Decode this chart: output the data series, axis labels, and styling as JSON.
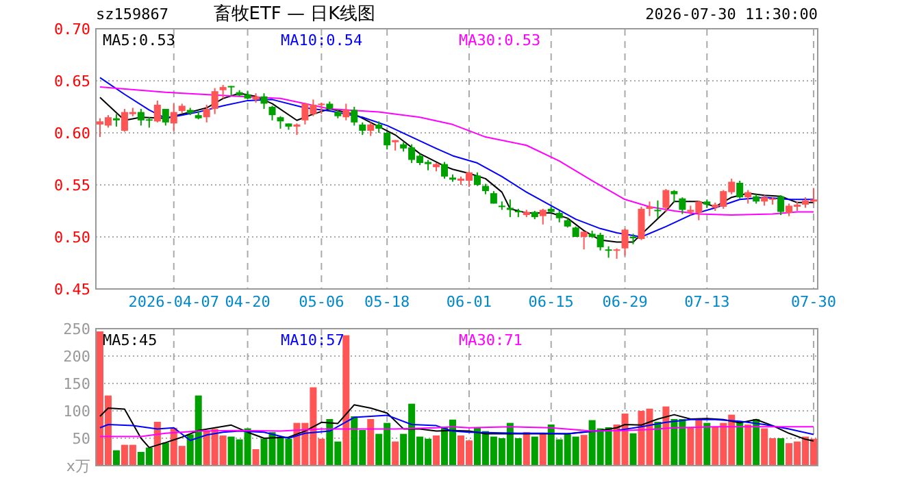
{
  "chart_data": [
    {
      "type": "candlestick",
      "title": "畜牧ETF — 日K线图",
      "annotations": [
        "sz159867",
        "2026-07-30 11:30:00"
      ],
      "categories": [
        null,
        null,
        null,
        null,
        null,
        null,
        null,
        null,
        null,
        "2026-04-07",
        null,
        null,
        null,
        null,
        null,
        null,
        null,
        null,
        "04-20",
        null,
        null,
        null,
        null,
        null,
        null,
        null,
        null,
        "05-06",
        null,
        null,
        null,
        null,
        null,
        null,
        null,
        "05-18",
        null,
        null,
        null,
        null,
        null,
        null,
        null,
        null,
        null,
        "06-01",
        null,
        null,
        null,
        null,
        null,
        null,
        null,
        null,
        null,
        "06-15",
        null,
        null,
        null,
        null,
        null,
        null,
        null,
        null,
        "06-29",
        null,
        null,
        null,
        null,
        null,
        null,
        null,
        null,
        null,
        "07-13",
        null,
        null,
        null,
        null,
        null,
        null,
        null,
        null,
        null,
        null,
        null,
        null,
        "07-30"
      ],
      "ohlc": [
        [
          0.608,
          0.614,
          0.596,
          0.611
        ],
        [
          0.607,
          0.617,
          0.605,
          0.615
        ],
        [
          0.614,
          0.618,
          0.606,
          0.612
        ],
        [
          0.602,
          0.623,
          0.601,
          0.62
        ],
        [
          0.618,
          0.624,
          0.616,
          0.62
        ],
        [
          0.62,
          0.623,
          0.607,
          0.612
        ],
        [
          0.613,
          0.615,
          0.605,
          0.612
        ],
        [
          0.611,
          0.631,
          0.61,
          0.627
        ],
        [
          0.623,
          0.623,
          0.607,
          0.61
        ],
        [
          0.609,
          0.628,
          0.602,
          0.62
        ],
        [
          0.621,
          0.628,
          0.619,
          0.626
        ],
        [
          0.622,
          0.624,
          0.617,
          0.619
        ],
        [
          0.617,
          0.621,
          0.613,
          0.614
        ],
        [
          0.615,
          0.627,
          0.61,
          0.623
        ],
        [
          0.623,
          0.643,
          0.618,
          0.64
        ],
        [
          0.641,
          0.646,
          0.633,
          0.644
        ],
        [
          0.645,
          0.645,
          0.636,
          0.644
        ],
        [
          0.639,
          0.641,
          0.635,
          0.636
        ],
        [
          0.637,
          0.64,
          0.632,
          0.633
        ],
        [
          0.632,
          0.638,
          0.629,
          0.635
        ],
        [
          0.635,
          0.638,
          0.623,
          0.628
        ],
        [
          0.625,
          0.626,
          0.612,
          0.617
        ],
        [
          0.615,
          0.616,
          0.604,
          0.611
        ],
        [
          0.609,
          0.609,
          0.603,
          0.606
        ],
        [
          0.606,
          0.609,
          0.598,
          0.608
        ],
        [
          0.612,
          0.629,
          0.608,
          0.628
        ],
        [
          0.618,
          0.632,
          0.616,
          0.627
        ],
        [
          0.627,
          0.629,
          0.618,
          0.628
        ],
        [
          0.628,
          0.63,
          0.622,
          0.623
        ],
        [
          0.62,
          0.622,
          0.614,
          0.616
        ],
        [
          0.615,
          0.628,
          0.612,
          0.622
        ],
        [
          0.622,
          0.625,
          0.607,
          0.61
        ],
        [
          0.608,
          0.61,
          0.598,
          0.602
        ],
        [
          0.602,
          0.61,
          0.597,
          0.608
        ],
        [
          0.608,
          0.611,
          0.6,
          0.604
        ],
        [
          0.6,
          0.601,
          0.584,
          0.588
        ],
        [
          0.591,
          0.593,
          0.583,
          0.593
        ],
        [
          0.589,
          0.591,
          0.582,
          0.585
        ],
        [
          0.586,
          0.589,
          0.571,
          0.574
        ],
        [
          0.578,
          0.58,
          0.569,
          0.571
        ],
        [
          0.572,
          0.574,
          0.564,
          0.57
        ],
        [
          0.567,
          0.571,
          0.563,
          0.57
        ],
        [
          0.57,
          0.572,
          0.556,
          0.558
        ],
        [
          0.557,
          0.56,
          0.553,
          0.555
        ],
        [
          0.554,
          0.558,
          0.55,
          0.556
        ],
        [
          0.554,
          0.563,
          0.548,
          0.562
        ],
        [
          0.559,
          0.562,
          0.549,
          0.55
        ],
        [
          0.549,
          0.551,
          0.541,
          0.544
        ],
        [
          0.542,
          0.544,
          0.532,
          0.532
        ],
        [
          0.53,
          0.534,
          0.526,
          0.529
        ],
        [
          0.528,
          0.536,
          0.519,
          0.526
        ],
        [
          0.525,
          0.527,
          0.519,
          0.524
        ],
        [
          0.521,
          0.526,
          0.519,
          0.524
        ],
        [
          0.524,
          0.525,
          0.517,
          0.519
        ],
        [
          0.52,
          0.527,
          0.512,
          0.526
        ],
        [
          0.527,
          0.529,
          0.523,
          0.524
        ],
        [
          0.523,
          0.525,
          0.514,
          0.518
        ],
        [
          0.516,
          0.518,
          0.509,
          0.51
        ],
        [
          0.509,
          0.51,
          0.5,
          0.5
        ],
        [
          0.5,
          0.505,
          0.488,
          0.505
        ],
        [
          0.503,
          0.506,
          0.499,
          0.5
        ],
        [
          0.502,
          0.504,
          0.487,
          0.49
        ],
        [
          0.488,
          0.491,
          0.48,
          0.487
        ],
        [
          0.487,
          0.489,
          0.479,
          0.488
        ],
        [
          0.489,
          0.508,
          0.482,
          0.507
        ],
        [
          0.5,
          0.503,
          0.493,
          0.499
        ],
        [
          0.498,
          0.529,
          0.497,
          0.527
        ],
        [
          0.527,
          0.534,
          0.52,
          0.529
        ],
        [
          0.526,
          0.535,
          0.518,
          0.525
        ],
        [
          0.528,
          0.546,
          0.524,
          0.545
        ],
        [
          0.544,
          0.545,
          0.533,
          0.541
        ],
        [
          0.537,
          0.538,
          0.522,
          0.526
        ],
        [
          0.524,
          0.53,
          0.521,
          0.526
        ],
        [
          0.523,
          0.535,
          0.516,
          0.534
        ],
        [
          0.534,
          0.536,
          0.528,
          0.531
        ],
        [
          0.528,
          0.533,
          0.525,
          0.531
        ],
        [
          0.529,
          0.545,
          0.527,
          0.544
        ],
        [
          0.543,
          0.556,
          0.541,
          0.553
        ],
        [
          0.552,
          0.554,
          0.537,
          0.538
        ],
        [
          0.538,
          0.545,
          0.532,
          0.543
        ],
        [
          0.539,
          0.541,
          0.532,
          0.534
        ],
        [
          0.534,
          0.54,
          0.53,
          0.538
        ],
        [
          0.536,
          0.538,
          0.531,
          0.537
        ],
        [
          0.539,
          0.54,
          0.521,
          0.524
        ],
        [
          0.523,
          0.532,
          0.52,
          0.53
        ],
        [
          0.529,
          0.534,
          0.525,
          0.531
        ],
        [
          0.531,
          0.538,
          0.528,
          0.535
        ],
        [
          0.534,
          0.547,
          0.532,
          0.536
        ]
      ],
      "colors": [
        "#ff5555",
        "#ff5555",
        "#00a000",
        "#ff5555",
        "#ff5555",
        "#00a000",
        "#00a000",
        "#ff5555",
        "#00a000",
        "#ff5555",
        "#ff5555",
        "#00a000",
        "#00a000",
        "#ff5555",
        "#ff5555",
        "#ff5555",
        "#00a000",
        "#00a000",
        "#00a000",
        "#ff5555",
        "#00a000",
        "#00a000",
        "#00a000",
        "#00a000",
        "#ff5555",
        "#ff5555",
        "#ff5555",
        "#ff5555",
        "#00a000",
        "#00a000",
        "#ff5555",
        "#00a000",
        "#00a000",
        "#ff5555",
        "#00a000",
        "#00a000",
        "#ff5555",
        "#00a000",
        "#00a000",
        "#00a000",
        "#00a000",
        "#ff5555",
        "#00a000",
        "#00a000",
        "#ff5555",
        "#ff5555",
        "#00a000",
        "#00a000",
        "#00a000",
        "#00a000",
        "#00a000",
        "#00a000",
        "#ff5555",
        "#00a000",
        "#ff5555",
        "#00a000",
        "#00a000",
        "#00a000",
        "#00a000",
        "#ff5555",
        "#00a000",
        "#00a000",
        "#00a000",
        "#ff5555",
        "#ff5555",
        "#00a000",
        "#ff5555",
        "#ff5555",
        "#00a000",
        "#ff5555",
        "#00a000",
        "#00a000",
        "#ff5555",
        "#ff5555",
        "#00a000",
        "#ff5555",
        "#ff5555",
        "#ff5555",
        "#00a000",
        "#ff5555",
        "#00a000",
        "#ff5555",
        "#ff5555",
        "#00a000",
        "#ff5555",
        "#ff5555",
        "#ff5555",
        "#ff5555"
      ],
      "ylim": [
        0.45,
        0.7
      ],
      "yticks": [
        0.45,
        {
          "value": 0.5,
          "label": "0.50"
        },
        0.55,
        {
          "value": 0.6,
          "label": "0.60"
        },
        0.65,
        {
          "value": 0.7,
          "label": "0.70"
        }
      ],
      "series": [
        {
          "name": "MA5:0.53",
          "type": "line",
          "color": "#000000",
          "values": [
            0.634,
            null,
            null,
            0.612,
            null,
            0.615,
            null,
            null,
            0.614,
            null,
            null,
            0.62,
            null,
            0.624,
            null,
            0.633,
            null,
            0.638,
            null,
            0.635,
            null,
            0.628,
            null,
            null,
            0.612,
            null,
            0.618,
            null,
            0.623,
            null,
            null,
            0.618,
            null,
            0.61,
            null,
            null,
            0.598,
            null,
            null,
            0.58,
            null,
            null,
            0.568,
            0.565,
            null,
            0.561,
            null,
            0.556,
            null,
            0.543,
            0.527,
            null,
            0.523,
            null,
            null,
            0.523,
            null,
            0.518,
            null,
            0.506,
            null,
            0.497,
            null,
            0.495,
            null,
            0.495,
            null,
            0.51,
            null,
            0.525,
            0.534,
            null,
            null,
            0.534,
            null,
            0.529,
            null,
            0.538,
            null,
            0.542,
            null,
            0.54,
            null,
            0.539,
            null,
            0.533,
            null,
            0.533
          ]
        },
        {
          "name": "MA10:0.54",
          "type": "line",
          "color": "#0000ff",
          "values": [
            0.653,
            null,
            null,
            0.637,
            null,
            null,
            0.622,
            null,
            0.614,
            null,
            null,
            null,
            0.62,
            null,
            null,
            0.626,
            null,
            null,
            0.631,
            null,
            null,
            0.632,
            null,
            null,
            null,
            0.624,
            null,
            null,
            0.621,
            null,
            null,
            null,
            0.615,
            null,
            null,
            0.607,
            null,
            null,
            0.596,
            null,
            null,
            0.585,
            null,
            0.578,
            null,
            null,
            0.571,
            null,
            null,
            0.558,
            null,
            null,
            0.543,
            null,
            null,
            0.53,
            null,
            null,
            0.517,
            null,
            null,
            0.508,
            null,
            0.504,
            null,
            null,
            0.5,
            null,
            null,
            0.51,
            null,
            null,
            0.521,
            null,
            null,
            0.528,
            null,
            null,
            0.536,
            null,
            null,
            0.538,
            null,
            null,
            0.536,
            null,
            null,
            0.536
          ]
        },
        {
          "name": "MA30:0.53",
          "type": "line",
          "color": "#ff00ff",
          "values": [
            0.644,
            null,
            null,
            null,
            null,
            null,
            null,
            null,
            0.639,
            null,
            null,
            null,
            null,
            null,
            null,
            null,
            null,
            0.635,
            null,
            null,
            null,
            null,
            0.633,
            null,
            null,
            null,
            null,
            null,
            0.623,
            null,
            null,
            null,
            null,
            null,
            0.62,
            null,
            null,
            null,
            null,
            0.615,
            null,
            null,
            null,
            0.608,
            null,
            null,
            null,
            0.596,
            null,
            null,
            null,
            null,
            0.588,
            null,
            null,
            null,
            0.573,
            null,
            null,
            null,
            0.554,
            null,
            null,
            null,
            0.536,
            null,
            null,
            0.529,
            null,
            null,
            0.525,
            null,
            null,
            0.522,
            null,
            null,
            null,
            0.521,
            null,
            null,
            null,
            null,
            0.522,
            null,
            null,
            0.524,
            null,
            0.524
          ]
        }
      ],
      "grid": true,
      "legend": "top"
    },
    {
      "type": "bar",
      "categories": [
        null,
        null,
        null,
        null,
        null,
        null,
        null,
        null,
        null,
        null,
        null,
        null,
        null,
        null,
        null,
        null,
        null,
        null,
        null,
        null,
        null,
        null,
        null,
        null,
        null,
        null,
        null,
        null,
        null,
        null,
        null,
        null,
        null,
        null,
        null,
        null,
        null,
        null,
        null,
        null,
        null,
        null,
        null,
        null,
        null,
        null,
        null,
        null,
        null,
        null,
        null,
        null,
        null,
        null,
        null,
        null,
        null,
        null,
        null,
        null,
        null,
        null,
        null,
        null,
        null,
        null,
        null,
        null,
        null,
        null,
        null,
        null,
        null,
        null,
        null,
        null,
        null,
        null,
        null,
        null,
        null,
        null,
        null,
        null,
        null,
        null,
        null,
        null
      ],
      "values": [
        245,
        128,
        28,
        38,
        38,
        25,
        33,
        80,
        42,
        69,
        36,
        57,
        128,
        63,
        67,
        55,
        53,
        48,
        68,
        30,
        49,
        61,
        53,
        49,
        78,
        78,
        143,
        49,
        85,
        44,
        238,
        90,
        65,
        85,
        58,
        78,
        44,
        58,
        113,
        53,
        49,
        55,
        71,
        84,
        55,
        46,
        69,
        63,
        53,
        50,
        78,
        50,
        61,
        53,
        59,
        75,
        48,
        59,
        53,
        56,
        83,
        68,
        70,
        75,
        95,
        59,
        100,
        104,
        80,
        108,
        85,
        85,
        69,
        84,
        78,
        70,
        78,
        93,
        80,
        75,
        85,
        68,
        50,
        50,
        41,
        44,
        53,
        49
      ],
      "colors": [
        "#ff5555",
        "#ff5555",
        "#00a000",
        "#ff5555",
        "#ff5555",
        "#00a000",
        "#00a000",
        "#ff5555",
        "#00a000",
        "#ff5555",
        "#ff5555",
        "#00a000",
        "#00a000",
        "#ff5555",
        "#ff5555",
        "#ff5555",
        "#00a000",
        "#00a000",
        "#00a000",
        "#ff5555",
        "#00a000",
        "#00a000",
        "#00a000",
        "#00a000",
        "#ff5555",
        "#ff5555",
        "#ff5555",
        "#ff5555",
        "#00a000",
        "#00a000",
        "#ff5555",
        "#00a000",
        "#00a000",
        "#ff5555",
        "#00a000",
        "#00a000",
        "#ff5555",
        "#00a000",
        "#00a000",
        "#00a000",
        "#00a000",
        "#ff5555",
        "#00a000",
        "#00a000",
        "#ff5555",
        "#ff5555",
        "#00a000",
        "#00a000",
        "#00a000",
        "#00a000",
        "#00a000",
        "#00a000",
        "#ff5555",
        "#00a000",
        "#ff5555",
        "#00a000",
        "#00a000",
        "#00a000",
        "#00a000",
        "#ff5555",
        "#00a000",
        "#00a000",
        "#00a000",
        "#ff5555",
        "#ff5555",
        "#00a000",
        "#ff5555",
        "#ff5555",
        "#00a000",
        "#ff5555",
        "#00a000",
        "#00a000",
        "#ff5555",
        "#ff5555",
        "#00a000",
        "#ff5555",
        "#ff5555",
        "#ff5555",
        "#00a000",
        "#ff5555",
        "#00a000",
        "#ff5555",
        "#ff5555",
        "#00a000",
        "#ff5555",
        "#ff5555",
        "#ff5555",
        "#ff5555"
      ],
      "ylim": [
        0,
        250
      ],
      "yticks": [
        {
          "value": 0,
          "label": "x万"
        },
        50,
        100,
        150,
        200,
        250
      ],
      "series": [
        {
          "name": "MA5:45",
          "type": "line",
          "color": "#000000",
          "values": [
            90,
            105,
            null,
            103,
            null,
            50,
            33,
            null,
            42,
            null,
            52,
            null,
            64,
            null,
            69,
            null,
            74,
            null,
            61,
            null,
            50,
            null,
            null,
            52,
            null,
            63,
            null,
            79,
            null,
            77,
            null,
            111,
            null,
            105,
            null,
            96,
            null,
            67,
            null,
            67,
            null,
            63,
            null,
            64,
            null,
            63,
            null,
            58,
            null,
            58,
            null,
            58,
            null,
            58,
            null,
            58,
            null,
            58,
            null,
            61,
            null,
            64,
            null,
            69,
            75,
            null,
            74,
            null,
            85,
            null,
            93,
            null,
            85,
            null,
            86,
            null,
            84,
            null,
            78,
            null,
            84,
            null,
            73,
            null,
            59,
            null,
            48,
            45
          ]
        },
        {
          "name": "MA10:57",
          "type": "line",
          "color": "#0000ff",
          "values": [
            69,
            75,
            null,
            null,
            73,
            null,
            null,
            67,
            null,
            69,
            null,
            46,
            null,
            56,
            null,
            61,
            null,
            63,
            null,
            null,
            61,
            null,
            null,
            50,
            null,
            59,
            null,
            null,
            63,
            null,
            null,
            88,
            null,
            null,
            null,
            92,
            null,
            null,
            75,
            null,
            null,
            73,
            null,
            63,
            null,
            61,
            null,
            null,
            60,
            null,
            null,
            59,
            null,
            null,
            59,
            null,
            null,
            58,
            null,
            null,
            63,
            null,
            null,
            64,
            null,
            null,
            71,
            null,
            null,
            79,
            null,
            null,
            84,
            null,
            null,
            84,
            null,
            null,
            81,
            null,
            null,
            75,
            null,
            null,
            67,
            null,
            null,
            57
          ]
        },
        {
          "name": "MA30:71",
          "type": "line",
          "color": "#ff00ff",
          "values": [
            53,
            null,
            null,
            null,
            null,
            53,
            null,
            null,
            59,
            null,
            null,
            null,
            63,
            null,
            null,
            null,
            null,
            64,
            null,
            null,
            null,
            null,
            63,
            null,
            null,
            null,
            null,
            67,
            null,
            null,
            null,
            67,
            null,
            null,
            null,
            null,
            67,
            null,
            null,
            null,
            null,
            69,
            null,
            71,
            null,
            69,
            null,
            null,
            null,
            null,
            71,
            null,
            null,
            null,
            null,
            69,
            null,
            null,
            null,
            null,
            63,
            null,
            null,
            null,
            64,
            null,
            null,
            66,
            null,
            null,
            69,
            null,
            null,
            null,
            null,
            71,
            null,
            null,
            null,
            null,
            71,
            null,
            null,
            null,
            71,
            null,
            null,
            71
          ]
        }
      ],
      "grid": true,
      "legend": "top",
      "tick_labels": "y"
    }
  ]
}
